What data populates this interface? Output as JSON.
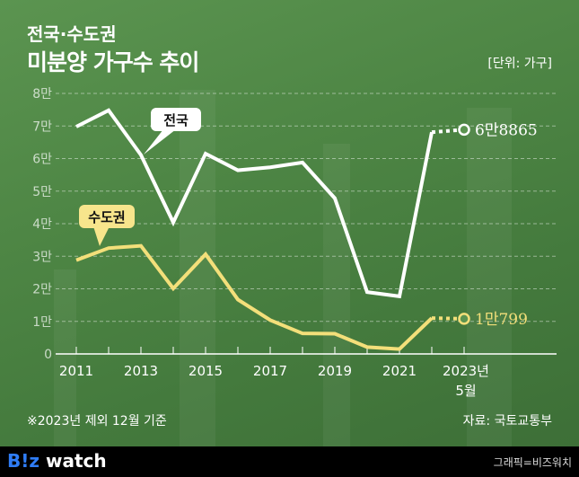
{
  "title_line1": "전국·수도권",
  "title_line2": "미분양 가구수 추이",
  "unit": "[단위: 가구]",
  "note": "※2023년 제외 12월 기준",
  "source": "자료: 국토교통부",
  "footer": {
    "logo_text": "B!z watch",
    "credit": "그래픽=비즈워치"
  },
  "colors": {
    "national": "#ffffff",
    "capital": "#f3df7a",
    "background": "#4d8544"
  },
  "chart_data": {
    "type": "line",
    "x": [
      2011,
      2012,
      2013,
      2014,
      2015,
      2016,
      2017,
      2018,
      2019,
      2020,
      2021,
      2022,
      "2023.05"
    ],
    "x_tick_labels": [
      "2011",
      "2013",
      "2015",
      "2017",
      "2019",
      "2021",
      "2023년",
      "5월"
    ],
    "y_tick_labels": [
      "0",
      "1만",
      "2만",
      "3만",
      "4만",
      "5만",
      "6만",
      "7만",
      "8만"
    ],
    "ylim": [
      0,
      80000
    ],
    "grid": true,
    "series": [
      {
        "name": "전국",
        "values": [
          69800,
          74800,
          61100,
          40400,
          61500,
          56400,
          57300,
          58800,
          47800,
          19000,
          17700,
          68100,
          68865
        ],
        "end_label": "6만8865",
        "last_segment_dashed": true
      },
      {
        "name": "수도권",
        "values": [
          28800,
          32500,
          33200,
          20100,
          30600,
          16700,
          10400,
          6300,
          6200,
          2100,
          1500,
          11000,
          10799
        ],
        "end_label": "1만799",
        "last_segment_dashed": true
      }
    ]
  }
}
